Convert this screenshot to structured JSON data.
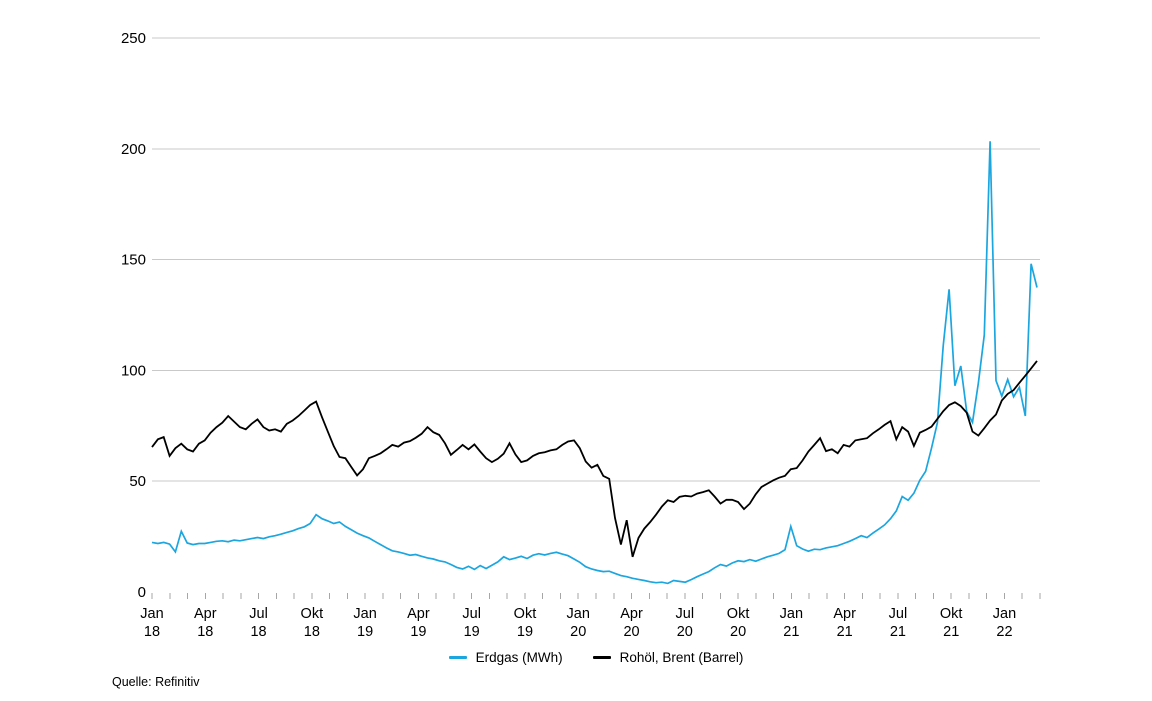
{
  "source": "Quelle: Refinitiv",
  "legend": {
    "items": [
      {
        "label": "Erdgas (MWh)",
        "color": "#1ba6e0"
      },
      {
        "label": "Rohöl, Brent (Barrel)",
        "color": "#000000"
      }
    ]
  },
  "chart_data": {
    "type": "line",
    "title": "",
    "xlabel": "",
    "ylabel": "",
    "ylim": [
      0,
      250
    ],
    "grid": true,
    "legend_position": "bottom-center",
    "colors": {
      "gridline": "#c9c9c9",
      "tick": "#a6a6a6",
      "text": "#000000"
    },
    "yticks": [
      0,
      50,
      100,
      150,
      200,
      250
    ],
    "x_minor_tick_unit": "month",
    "x_minor_tick_count": 51,
    "xlabels": [
      {
        "month": "Jan",
        "year": "18"
      },
      {
        "month": "Apr",
        "year": "18"
      },
      {
        "month": "Jul",
        "year": "18"
      },
      {
        "month": "Okt",
        "year": "18"
      },
      {
        "month": "Jan",
        "year": "19"
      },
      {
        "month": "Apr",
        "year": "19"
      },
      {
        "month": "Jul",
        "year": "19"
      },
      {
        "month": "Okt",
        "year": "19"
      },
      {
        "month": "Jan",
        "year": "20"
      },
      {
        "month": "Apr",
        "year": "20"
      },
      {
        "month": "Jul",
        "year": "20"
      },
      {
        "month": "Okt",
        "year": "20"
      },
      {
        "month": "Jan",
        "year": "21"
      },
      {
        "month": "Apr",
        "year": "21"
      },
      {
        "month": "Jul",
        "year": "21"
      },
      {
        "month": "Okt",
        "year": "21"
      },
      {
        "month": "Jan",
        "year": "22"
      }
    ],
    "x_range_note": "ca. 3 Werte pro Monat, Jan 2018 bis Anfang Mär 2022",
    "series": [
      {
        "name": "Erdgas (MWh)",
        "color": "#1ba6e0",
        "width": 1.7,
        "values": [
          22.4,
          21.9,
          22.4,
          21.6,
          18.1,
          27.4,
          22.1,
          21.4,
          21.9,
          21.9,
          22.4,
          22.9,
          23.1,
          22.7,
          23.4,
          23.1,
          23.6,
          24.1,
          24.6,
          24.1,
          24.9,
          25.4,
          26.1,
          26.9,
          27.6,
          28.6,
          29.4,
          30.9,
          34.9,
          33.1,
          32.1,
          30.9,
          31.6,
          29.6,
          28.1,
          26.6,
          25.4,
          24.4,
          22.9,
          21.4,
          19.9,
          18.6,
          18.1,
          17.4,
          16.6,
          16.9,
          16.1,
          15.4,
          14.9,
          14.1,
          13.6,
          12.4,
          11.1,
          10.4,
          11.6,
          10.2,
          11.9,
          10.6,
          12.1,
          13.6,
          15.9,
          14.6,
          15.3,
          16.1,
          15.1,
          16.6,
          17.3,
          16.7,
          17.4,
          17.9,
          17.1,
          16.4,
          14.9,
          13.4,
          11.4,
          10.4,
          9.7,
          9.2,
          9.4,
          8.4,
          7.4,
          6.9,
          6.2,
          5.7,
          5.2,
          4.6,
          4.2,
          4.4,
          3.9,
          5.2,
          4.8,
          4.4,
          5.6,
          6.9,
          8.1,
          9.2,
          10.9,
          12.4,
          11.7,
          13.1,
          14.1,
          13.7,
          14.6,
          13.9,
          14.9,
          15.9,
          16.6,
          17.4,
          19.1,
          29.6,
          20.9,
          19.4,
          18.4,
          19.3,
          19.1,
          19.9,
          20.4,
          20.9,
          21.9,
          22.9,
          24.1,
          25.4,
          24.6,
          26.6,
          28.4,
          30.3,
          33.1,
          36.6,
          43.1,
          41.4,
          44.6,
          50.4,
          54.4,
          64.9,
          76.4,
          111.0,
          136.6,
          93.1,
          102.0,
          81.4,
          76.6,
          94.4,
          116.0,
          203.4,
          95.4,
          88.4,
          95.9,
          88.1,
          92.4,
          79.4,
          148.1,
          137.4
        ]
      },
      {
        "name": "Rohöl, Brent (Barrel)",
        "color": "#000000",
        "width": 1.8,
        "values": [
          65.4,
          68.9,
          69.9,
          61.4,
          64.9,
          66.9,
          64.4,
          63.4,
          66.9,
          68.4,
          71.9,
          74.4,
          76.4,
          79.4,
          76.9,
          74.4,
          73.4,
          75.9,
          77.9,
          74.4,
          72.9,
          73.4,
          72.4,
          75.9,
          77.4,
          79.4,
          81.9,
          84.4,
          85.9,
          78.9,
          72.4,
          65.9,
          60.9,
          60.4,
          56.4,
          52.6,
          55.4,
          60.4,
          61.4,
          62.6,
          64.4,
          66.4,
          65.6,
          67.4,
          68.1,
          69.6,
          71.4,
          74.4,
          72.1,
          70.9,
          67.1,
          61.9,
          64.1,
          66.4,
          64.4,
          66.6,
          63.4,
          60.4,
          58.6,
          60.1,
          62.4,
          67.1,
          62.1,
          58.6,
          59.4,
          61.4,
          62.6,
          63.1,
          63.9,
          64.4,
          66.4,
          67.9,
          68.4,
          64.9,
          58.9,
          56.1,
          57.4,
          52.4,
          51.1,
          33.4,
          21.4,
          32.4,
          15.9,
          24.4,
          28.6,
          31.6,
          34.9,
          38.6,
          41.4,
          40.6,
          42.9,
          43.4,
          43.1,
          44.4,
          45.1,
          45.9,
          43.1,
          39.9,
          41.6,
          41.6,
          40.6,
          37.4,
          39.9,
          44.1,
          47.4,
          48.9,
          50.4,
          51.6,
          52.4,
          55.4,
          55.9,
          59.4,
          63.4,
          66.4,
          69.4,
          63.6,
          64.4,
          62.6,
          66.4,
          65.6,
          68.4,
          68.9,
          69.4,
          71.6,
          73.4,
          75.4,
          77.1,
          68.9,
          74.4,
          72.4,
          65.9,
          71.9,
          73.1,
          74.6,
          78.1,
          81.6,
          84.4,
          85.6,
          83.9,
          80.9,
          72.4,
          70.6,
          73.9,
          77.4,
          80.1,
          86.4,
          89.4,
          91.1,
          94.4,
          97.6,
          100.9,
          104.3
        ]
      }
    ]
  }
}
